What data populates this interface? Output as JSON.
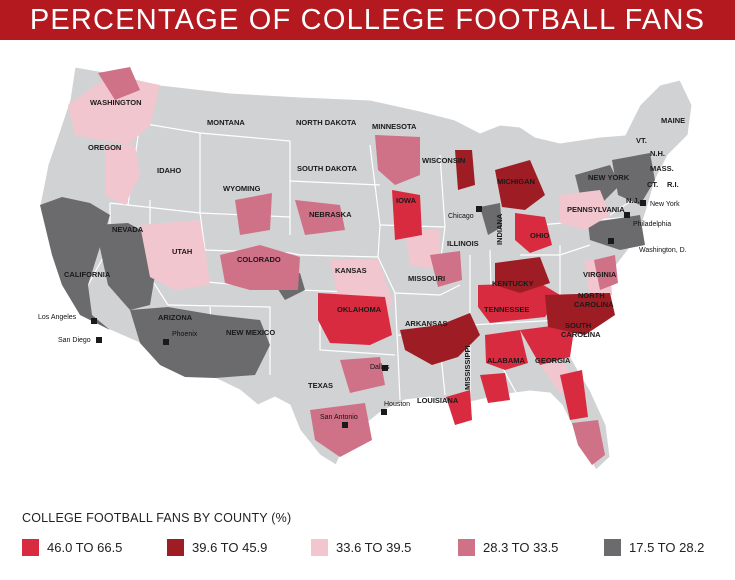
{
  "title": "PERCENTAGE OF COLLEGE FOOTBALL FANS",
  "legend": {
    "title": "COLLEGE FOOTBALL FANS BY COUNTY (%)",
    "items": [
      {
        "label": "46.0 TO 66.5",
        "color": "#d92b3f"
      },
      {
        "label": "39.6 TO 45.9",
        "color": "#9e1d25"
      },
      {
        "label": "33.6 TO 39.5",
        "color": "#f2c6cf"
      },
      {
        "label": "28.3 TO 33.5",
        "color": "#cf7187"
      },
      {
        "label": "17.5 TO 28.2",
        "color": "#6b6b6e"
      }
    ]
  },
  "base_color": "#d1d2d3",
  "states": {
    "washington": "WASHINGTON",
    "oregon": "OREGON",
    "idaho": "IDAHO",
    "montana": "MONTANA",
    "wyoming": "WYOMING",
    "nevada": "NEVADA",
    "utah": "UTAH",
    "colorado": "COLORADO",
    "california": "CALIFORNIA",
    "arizona": "ARIZONA",
    "new_mexico": "NEW MEXICO",
    "north_dakota": "NORTH DAKOTA",
    "south_dakota": "SOUTH DAKOTA",
    "nebraska": "NEBRASKA",
    "kansas": "KANSAS",
    "oklahoma": "OKLAHOMA",
    "texas": "TEXAS",
    "minnesota": "MINNESOTA",
    "iowa": "IOWA",
    "missouri": "MISSOURI",
    "arkansas": "ARKANSAS",
    "louisiana": "LOUISIANA",
    "wisconsin": "WISCONSIN",
    "illinois": "ILLINOIS",
    "mississippi": "MISSISSIPPI",
    "michigan": "MICHIGAN",
    "indiana": "INDIANA",
    "kentucky": "KENTUCKY",
    "tennessee": "TENNESSEE",
    "alabama": "ALABAMA",
    "georgia": "GEORGIA",
    "ohio": "OHIO",
    "pennsylvania": "PENNSYLVANIA",
    "new_york": "NEW YORK",
    "virginia": "VIRGINIA",
    "north_carolina_1": "NORTH",
    "north_carolina_2": "CAROLINA",
    "south_carolina_1": "SOUTH",
    "south_carolina_2": "CAROLINA",
    "maine": "MAINE",
    "vt": "VT.",
    "nh": "N.H.",
    "mass": "MASS.",
    "ct": "CT.",
    "ri": "R.I.",
    "nj": "N.J."
  },
  "cities": {
    "los_angeles": "Los Angeles",
    "san_diego": "San Diego",
    "phoenix": "Phoenix",
    "dallas": "Dallas",
    "san_antonio": "San Antonio",
    "houston": "Houston",
    "chicago": "Chicago",
    "new_york": "New York",
    "philadelphia": "Philadelphia",
    "washington_dc": "Washington, D."
  }
}
